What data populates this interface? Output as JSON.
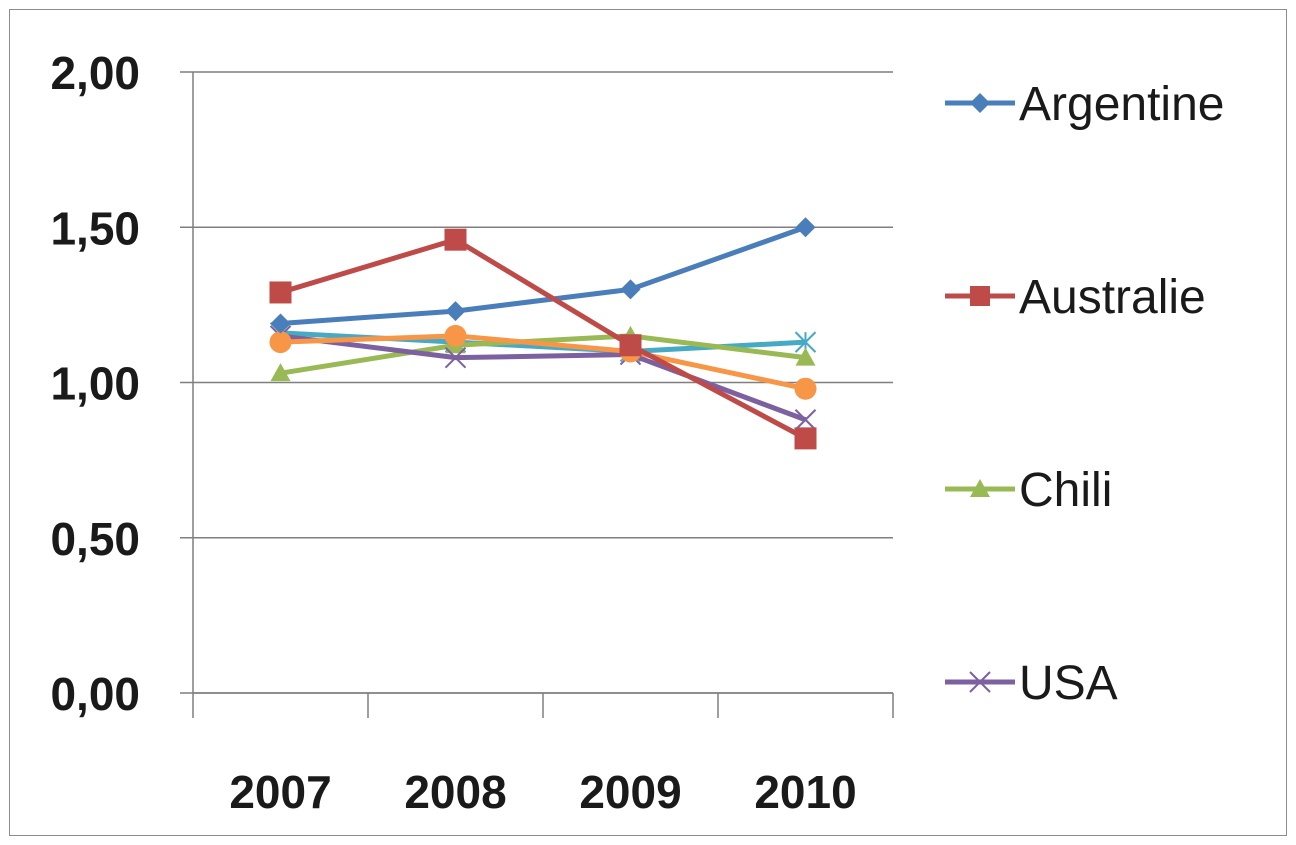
{
  "chart_data": {
    "type": "line",
    "title": "",
    "xlabel": "",
    "ylabel": "",
    "categories": [
      "2007",
      "2008",
      "2009",
      "2010"
    ],
    "ylim": [
      0,
      2
    ],
    "yticks": [
      "0,00",
      "0,50",
      "1,00",
      "1,50",
      "2,00"
    ],
    "ytick_values": [
      0,
      0.5,
      1,
      1.5,
      2
    ],
    "grid": "horizontal",
    "legend_position": "right",
    "series": [
      {
        "name": "Argentine",
        "values": [
          1.19,
          1.23,
          1.3,
          1.5
        ],
        "color": "#4a7ebb",
        "marker": "diamond",
        "legend": true
      },
      {
        "name": "Australie",
        "values": [
          1.29,
          1.46,
          1.12,
          0.82
        ],
        "color": "#be4b48",
        "marker": "square",
        "legend": true
      },
      {
        "name": "Chili",
        "values": [
          1.03,
          1.12,
          1.15,
          1.08
        ],
        "color": "#98b954",
        "marker": "triangle",
        "legend": true
      },
      {
        "name": "USA",
        "values": [
          1.15,
          1.08,
          1.09,
          0.88
        ],
        "color": "#7d60a0",
        "marker": "x",
        "legend": true
      },
      {
        "name": "",
        "values": [
          1.16,
          1.13,
          1.1,
          1.13
        ],
        "color": "#46aac5",
        "marker": "star",
        "legend": false
      },
      {
        "name": "",
        "values": [
          1.13,
          1.15,
          1.1,
          0.98
        ],
        "color": "#f79646",
        "marker": "circle",
        "legend": false
      }
    ]
  }
}
